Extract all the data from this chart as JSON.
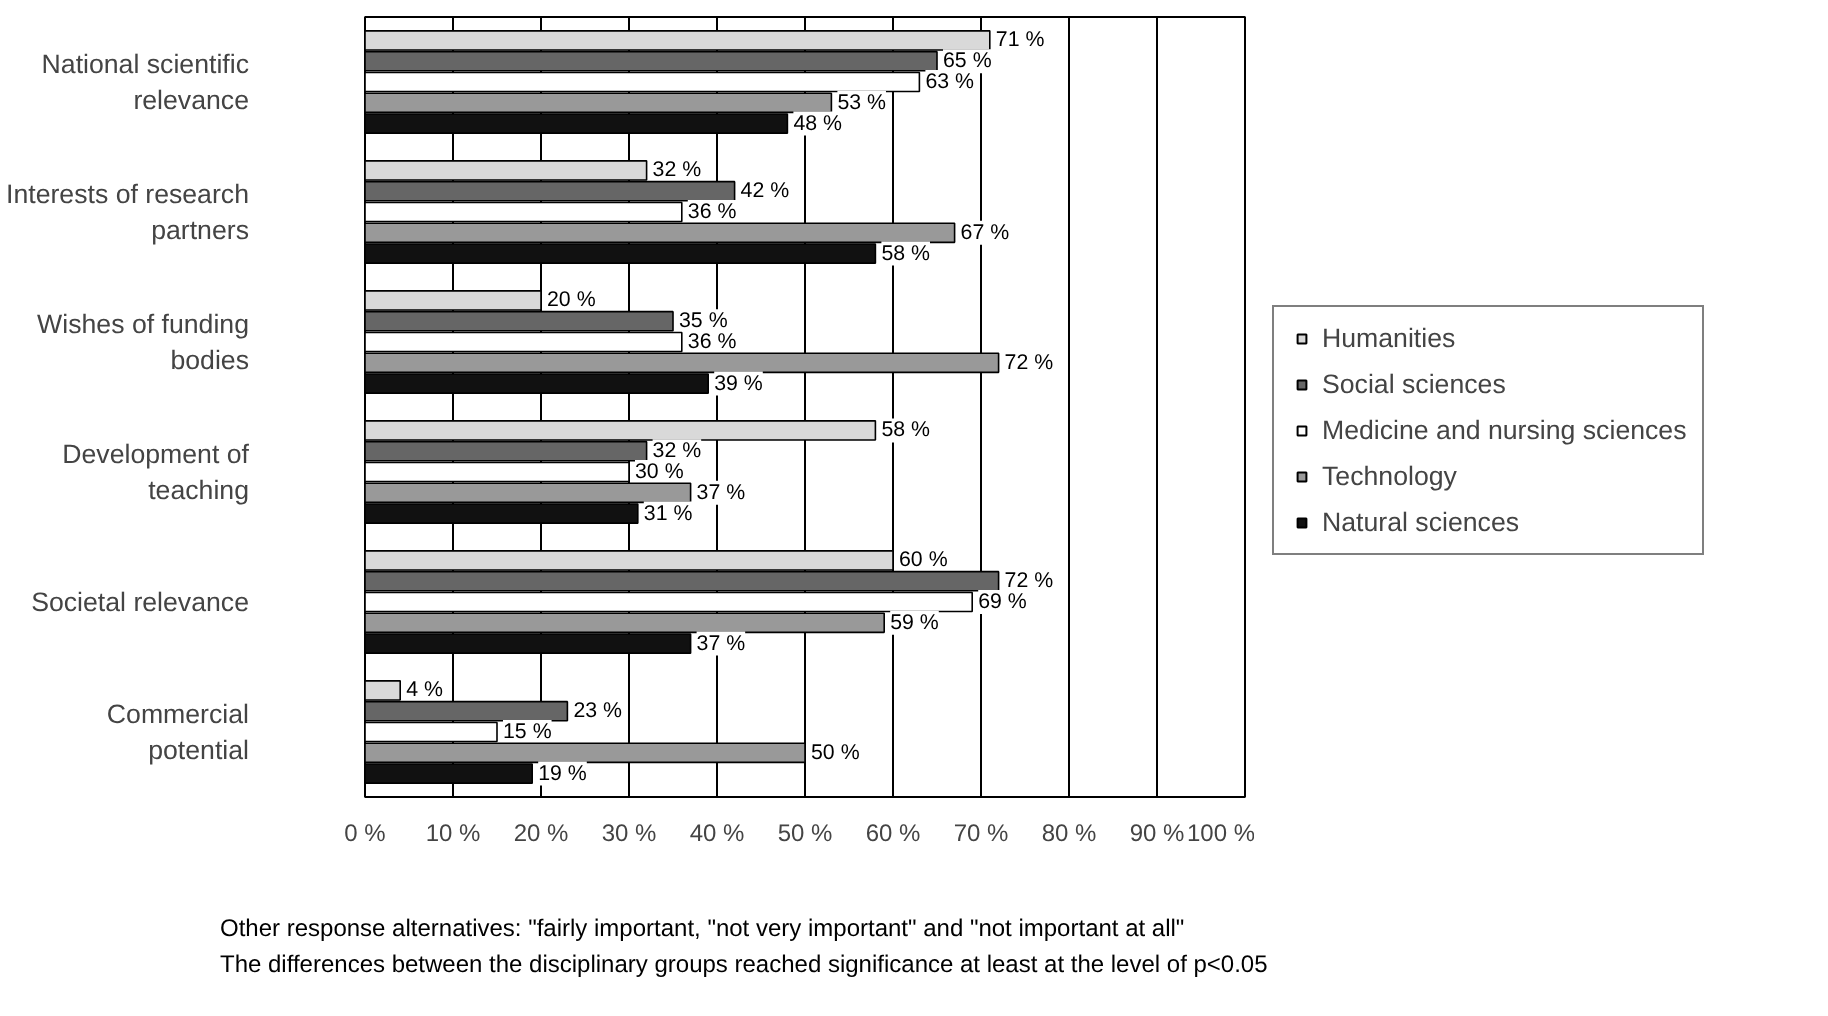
{
  "chart_data": {
    "type": "bar",
    "orientation": "horizontal",
    "categories": [
      "National scientific\nrelevance",
      "Interests of research\npartners",
      "Wishes of funding\nbodies",
      "Development of\nteaching",
      "Societal relevance",
      "Commercial\npotential"
    ],
    "series": [
      {
        "name": "Humanities",
        "color": "#d9d9d9",
        "values": [
          71,
          32,
          20,
          58,
          60,
          4
        ],
        "value_labels": [
          "71 %",
          "32 %",
          "20 %",
          "58 %",
          "60 %",
          "4 %"
        ]
      },
      {
        "name": "Social sciences",
        "color": "#666666",
        "values": [
          65,
          42,
          35,
          32,
          72,
          23
        ],
        "value_labels": [
          "65 %",
          "42 %",
          "35 %",
          "32 %",
          "72 %",
          "23 %"
        ]
      },
      {
        "name": "Medicine and nursing sciences",
        "color": "#ffffff",
        "values": [
          63,
          36,
          36,
          30,
          69,
          15
        ],
        "value_labels": [
          "63 %",
          "36 %",
          "36 %",
          "30 %",
          "69 %",
          "15 %"
        ]
      },
      {
        "name": "Technology",
        "color": "#999999",
        "values": [
          53,
          67,
          72,
          37,
          59,
          50
        ],
        "value_labels": [
          "53 %",
          "67 %",
          "72 %",
          "37 %",
          "59 %",
          "50 %"
        ]
      },
      {
        "name": "Natural sciences",
        "color": "#111111",
        "values": [
          48,
          58,
          39,
          31,
          37,
          19
        ],
        "value_labels": [
          "48 %",
          "58 %",
          "39 %",
          "31 %",
          "37 %",
          "19 %"
        ]
      }
    ],
    "xlim": [
      0,
      100
    ],
    "xticks": [
      {
        "value": 0,
        "label": "0 %"
      },
      {
        "value": 10,
        "label": "10 %"
      },
      {
        "value": 20,
        "label": "20 %"
      },
      {
        "value": 30,
        "label": "30 %"
      },
      {
        "value": 40,
        "label": "40 %"
      },
      {
        "value": 50,
        "label": "50 %"
      },
      {
        "value": 60,
        "label": "60 %"
      },
      {
        "value": 70,
        "label": "70 %"
      },
      {
        "value": 80,
        "label": "80 %"
      },
      {
        "value": 90,
        "label": "90 %"
      },
      {
        "value": 100,
        "label": "100 %"
      }
    ],
    "grid": "x",
    "legend": "right",
    "annotations": [
      "Other response alternatives: \"fairly important, \"not very important\" and \"not important at all\"",
      "The differences between the disciplinary groups reached significance at least at the level of  p<0.05"
    ]
  }
}
